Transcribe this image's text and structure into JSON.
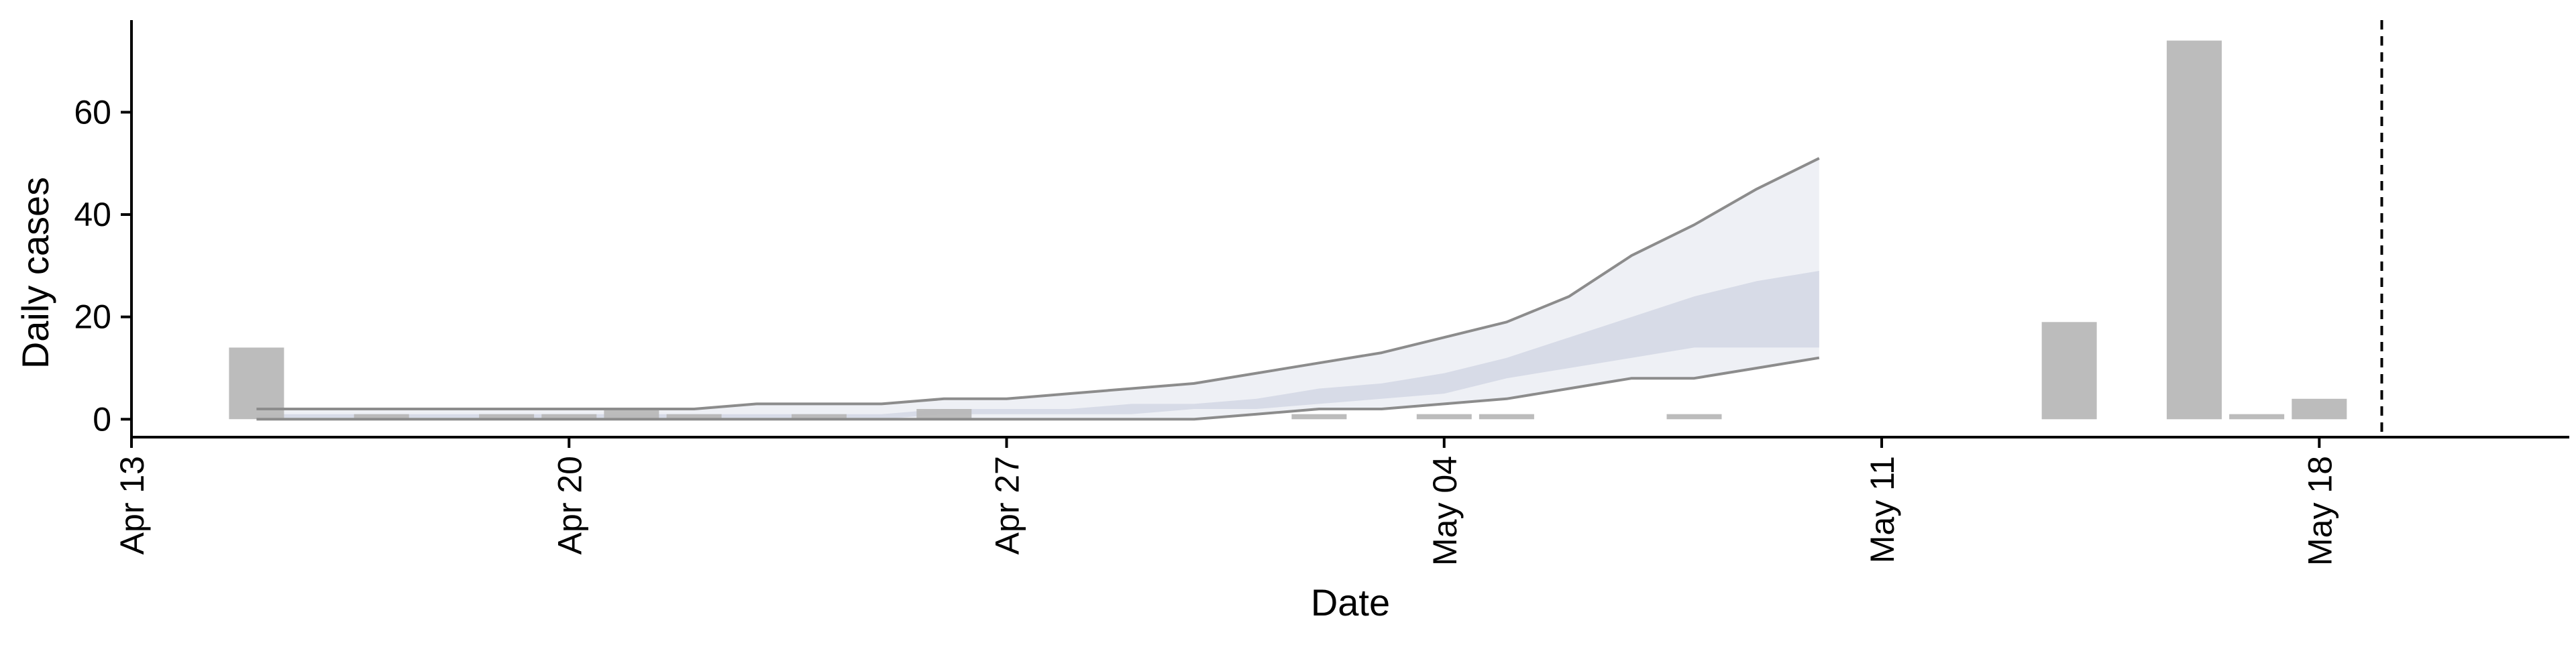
{
  "chart_data": {
    "type": "bar",
    "title": "",
    "xlabel": "Date",
    "ylabel": "Daily cases",
    "xlim": [
      "2020-04-13",
      "2020-05-22"
    ],
    "ylim": [
      -3.5,
      78
    ],
    "x_ticks": [
      {
        "date": "2020-04-13",
        "label": "Apr 13"
      },
      {
        "date": "2020-04-20",
        "label": "Apr 20"
      },
      {
        "date": "2020-04-27",
        "label": "Apr 27"
      },
      {
        "date": "2020-05-04",
        "label": "May 04"
      },
      {
        "date": "2020-05-11",
        "label": "May 11"
      },
      {
        "date": "2020-05-18",
        "label": "May 18"
      }
    ],
    "y_ticks": [
      0,
      20,
      40,
      60
    ],
    "grid": false,
    "bar_color": "#b8b8b8",
    "series": [
      {
        "kind": "bar",
        "x": [
          "2020-04-15",
          "2020-04-16",
          "2020-04-17",
          "2020-04-18",
          "2020-04-19",
          "2020-04-20",
          "2020-04-21",
          "2020-04-22",
          "2020-04-23",
          "2020-04-24",
          "2020-04-25",
          "2020-04-26",
          "2020-04-27",
          "2020-04-28",
          "2020-04-29",
          "2020-04-30",
          "2020-05-01",
          "2020-05-02",
          "2020-05-03",
          "2020-05-04",
          "2020-05-05",
          "2020-05-06",
          "2020-05-07",
          "2020-05-08",
          "2020-05-09",
          "2020-05-10",
          "2020-05-11",
          "2020-05-12",
          "2020-05-13",
          "2020-05-14",
          "2020-05-15",
          "2020-05-16",
          "2020-05-17",
          "2020-05-18"
        ],
        "values": [
          14,
          0,
          1,
          0,
          1,
          1,
          2,
          1,
          0,
          1,
          0,
          2,
          0,
          0,
          0,
          0,
          0,
          1,
          0,
          1,
          1,
          0,
          0,
          1,
          0,
          0,
          0,
          0,
          0,
          19,
          0,
          74,
          1,
          4
        ]
      }
    ],
    "forecast": {
      "x": [
        "2020-04-15",
        "2020-04-16",
        "2020-04-17",
        "2020-04-18",
        "2020-04-19",
        "2020-04-20",
        "2020-04-21",
        "2020-04-22",
        "2020-04-23",
        "2020-04-24",
        "2020-04-25",
        "2020-04-26",
        "2020-04-27",
        "2020-04-28",
        "2020-04-29",
        "2020-04-30",
        "2020-05-01",
        "2020-05-02",
        "2020-05-03",
        "2020-05-04",
        "2020-05-05",
        "2020-05-06",
        "2020-05-07",
        "2020-05-08",
        "2020-05-09",
        "2020-05-10"
      ],
      "outer_upper": [
        2,
        2,
        2,
        2,
        2,
        2,
        2,
        2,
        3,
        3,
        3,
        4,
        4,
        5,
        6,
        7,
        9,
        11,
        13,
        16,
        19,
        24,
        32,
        38,
        45,
        51
      ],
      "outer_lower": [
        0,
        0,
        0,
        0,
        0,
        0,
        0,
        0,
        0,
        0,
        0,
        0,
        0,
        0,
        0,
        0,
        1,
        2,
        2,
        3,
        4,
        6,
        8,
        8,
        10,
        12
      ],
      "inner_upper": [
        1,
        1,
        1,
        1,
        1,
        1,
        1,
        1,
        1,
        1,
        1,
        2,
        2,
        2,
        3,
        3,
        4,
        6,
        7,
        9,
        12,
        16,
        20,
        24,
        27,
        29
      ],
      "inner_lower": [
        0,
        0,
        0,
        0,
        0,
        0,
        0,
        0,
        0,
        0,
        0,
        1,
        1,
        1,
        1,
        2,
        2,
        3,
        4,
        5,
        8,
        10,
        12,
        14,
        14,
        14
      ],
      "outer_color": "#eef0f5",
      "inner_color": "#d7dbe7",
      "line_color": "#8c8c8c"
    },
    "vline": {
      "x": "2020-05-19",
      "style": "dashed"
    }
  }
}
